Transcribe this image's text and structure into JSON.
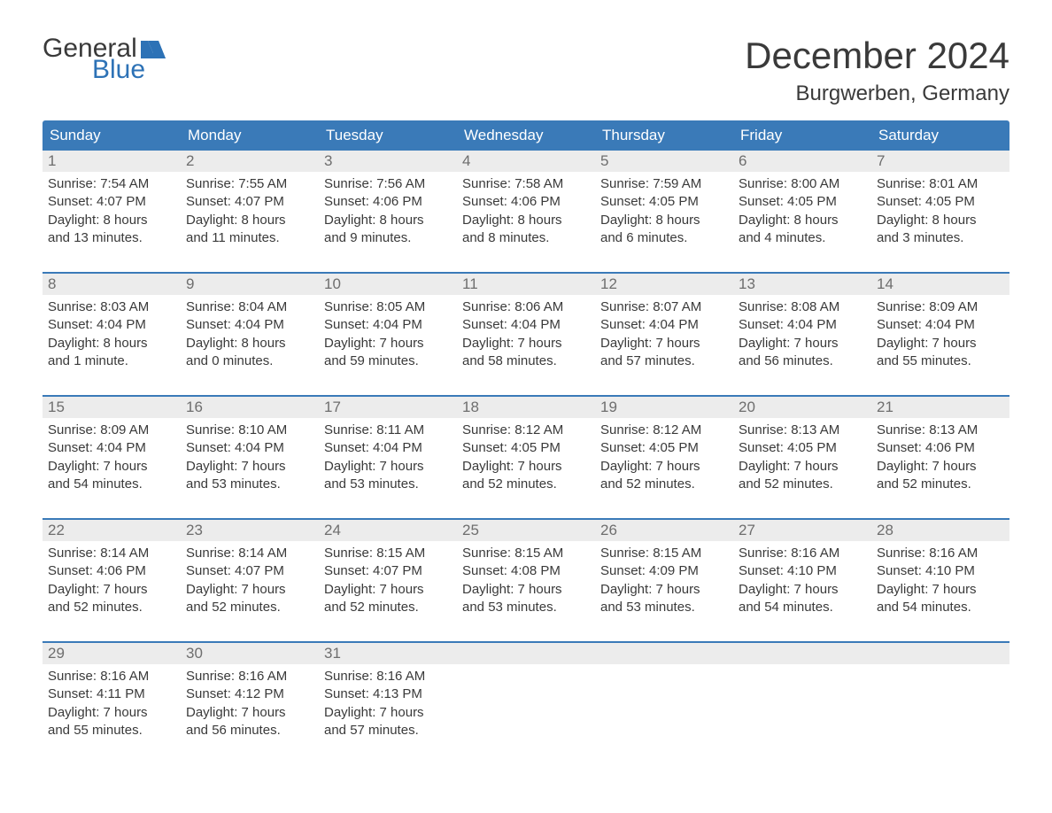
{
  "logo": {
    "text1": "General",
    "text2": "Blue"
  },
  "title": "December 2024",
  "subtitle": "Burgwerben, Germany",
  "colors": {
    "header_bg": "#3a7ab8",
    "header_text": "#ffffff",
    "daynum_bg": "#ececec",
    "daynum_text": "#6e6e6e",
    "body_text": "#3a3a3a",
    "week_border": "#3a7ab8",
    "logo_blue": "#2d72b6",
    "background": "#ffffff"
  },
  "day_headers": [
    "Sunday",
    "Monday",
    "Tuesday",
    "Wednesday",
    "Thursday",
    "Friday",
    "Saturday"
  ],
  "weeks": [
    {
      "days": [
        {
          "n": "1",
          "sunrise": "Sunrise: 7:54 AM",
          "sunset": "Sunset: 4:07 PM",
          "day1": "Daylight: 8 hours",
          "day2": "and 13 minutes."
        },
        {
          "n": "2",
          "sunrise": "Sunrise: 7:55 AM",
          "sunset": "Sunset: 4:07 PM",
          "day1": "Daylight: 8 hours",
          "day2": "and 11 minutes."
        },
        {
          "n": "3",
          "sunrise": "Sunrise: 7:56 AM",
          "sunset": "Sunset: 4:06 PM",
          "day1": "Daylight: 8 hours",
          "day2": "and 9 minutes."
        },
        {
          "n": "4",
          "sunrise": "Sunrise: 7:58 AM",
          "sunset": "Sunset: 4:06 PM",
          "day1": "Daylight: 8 hours",
          "day2": "and 8 minutes."
        },
        {
          "n": "5",
          "sunrise": "Sunrise: 7:59 AM",
          "sunset": "Sunset: 4:05 PM",
          "day1": "Daylight: 8 hours",
          "day2": "and 6 minutes."
        },
        {
          "n": "6",
          "sunrise": "Sunrise: 8:00 AM",
          "sunset": "Sunset: 4:05 PM",
          "day1": "Daylight: 8 hours",
          "day2": "and 4 minutes."
        },
        {
          "n": "7",
          "sunrise": "Sunrise: 8:01 AM",
          "sunset": "Sunset: 4:05 PM",
          "day1": "Daylight: 8 hours",
          "day2": "and 3 minutes."
        }
      ]
    },
    {
      "days": [
        {
          "n": "8",
          "sunrise": "Sunrise: 8:03 AM",
          "sunset": "Sunset: 4:04 PM",
          "day1": "Daylight: 8 hours",
          "day2": "and 1 minute."
        },
        {
          "n": "9",
          "sunrise": "Sunrise: 8:04 AM",
          "sunset": "Sunset: 4:04 PM",
          "day1": "Daylight: 8 hours",
          "day2": "and 0 minutes."
        },
        {
          "n": "10",
          "sunrise": "Sunrise: 8:05 AM",
          "sunset": "Sunset: 4:04 PM",
          "day1": "Daylight: 7 hours",
          "day2": "and 59 minutes."
        },
        {
          "n": "11",
          "sunrise": "Sunrise: 8:06 AM",
          "sunset": "Sunset: 4:04 PM",
          "day1": "Daylight: 7 hours",
          "day2": "and 58 minutes."
        },
        {
          "n": "12",
          "sunrise": "Sunrise: 8:07 AM",
          "sunset": "Sunset: 4:04 PM",
          "day1": "Daylight: 7 hours",
          "day2": "and 57 minutes."
        },
        {
          "n": "13",
          "sunrise": "Sunrise: 8:08 AM",
          "sunset": "Sunset: 4:04 PM",
          "day1": "Daylight: 7 hours",
          "day2": "and 56 minutes."
        },
        {
          "n": "14",
          "sunrise": "Sunrise: 8:09 AM",
          "sunset": "Sunset: 4:04 PM",
          "day1": "Daylight: 7 hours",
          "day2": "and 55 minutes."
        }
      ]
    },
    {
      "days": [
        {
          "n": "15",
          "sunrise": "Sunrise: 8:09 AM",
          "sunset": "Sunset: 4:04 PM",
          "day1": "Daylight: 7 hours",
          "day2": "and 54 minutes."
        },
        {
          "n": "16",
          "sunrise": "Sunrise: 8:10 AM",
          "sunset": "Sunset: 4:04 PM",
          "day1": "Daylight: 7 hours",
          "day2": "and 53 minutes."
        },
        {
          "n": "17",
          "sunrise": "Sunrise: 8:11 AM",
          "sunset": "Sunset: 4:04 PM",
          "day1": "Daylight: 7 hours",
          "day2": "and 53 minutes."
        },
        {
          "n": "18",
          "sunrise": "Sunrise: 8:12 AM",
          "sunset": "Sunset: 4:05 PM",
          "day1": "Daylight: 7 hours",
          "day2": "and 52 minutes."
        },
        {
          "n": "19",
          "sunrise": "Sunrise: 8:12 AM",
          "sunset": "Sunset: 4:05 PM",
          "day1": "Daylight: 7 hours",
          "day2": "and 52 minutes."
        },
        {
          "n": "20",
          "sunrise": "Sunrise: 8:13 AM",
          "sunset": "Sunset: 4:05 PM",
          "day1": "Daylight: 7 hours",
          "day2": "and 52 minutes."
        },
        {
          "n": "21",
          "sunrise": "Sunrise: 8:13 AM",
          "sunset": "Sunset: 4:06 PM",
          "day1": "Daylight: 7 hours",
          "day2": "and 52 minutes."
        }
      ]
    },
    {
      "days": [
        {
          "n": "22",
          "sunrise": "Sunrise: 8:14 AM",
          "sunset": "Sunset: 4:06 PM",
          "day1": "Daylight: 7 hours",
          "day2": "and 52 minutes."
        },
        {
          "n": "23",
          "sunrise": "Sunrise: 8:14 AM",
          "sunset": "Sunset: 4:07 PM",
          "day1": "Daylight: 7 hours",
          "day2": "and 52 minutes."
        },
        {
          "n": "24",
          "sunrise": "Sunrise: 8:15 AM",
          "sunset": "Sunset: 4:07 PM",
          "day1": "Daylight: 7 hours",
          "day2": "and 52 minutes."
        },
        {
          "n": "25",
          "sunrise": "Sunrise: 8:15 AM",
          "sunset": "Sunset: 4:08 PM",
          "day1": "Daylight: 7 hours",
          "day2": "and 53 minutes."
        },
        {
          "n": "26",
          "sunrise": "Sunrise: 8:15 AM",
          "sunset": "Sunset: 4:09 PM",
          "day1": "Daylight: 7 hours",
          "day2": "and 53 minutes."
        },
        {
          "n": "27",
          "sunrise": "Sunrise: 8:16 AM",
          "sunset": "Sunset: 4:10 PM",
          "day1": "Daylight: 7 hours",
          "day2": "and 54 minutes."
        },
        {
          "n": "28",
          "sunrise": "Sunrise: 8:16 AM",
          "sunset": "Sunset: 4:10 PM",
          "day1": "Daylight: 7 hours",
          "day2": "and 54 minutes."
        }
      ]
    },
    {
      "days": [
        {
          "n": "29",
          "sunrise": "Sunrise: 8:16 AM",
          "sunset": "Sunset: 4:11 PM",
          "day1": "Daylight: 7 hours",
          "day2": "and 55 minutes."
        },
        {
          "n": "30",
          "sunrise": "Sunrise: 8:16 AM",
          "sunset": "Sunset: 4:12 PM",
          "day1": "Daylight: 7 hours",
          "day2": "and 56 minutes."
        },
        {
          "n": "31",
          "sunrise": "Sunrise: 8:16 AM",
          "sunset": "Sunset: 4:13 PM",
          "day1": "Daylight: 7 hours",
          "day2": "and 57 minutes."
        },
        {
          "empty": true
        },
        {
          "empty": true
        },
        {
          "empty": true
        },
        {
          "empty": true
        }
      ]
    }
  ]
}
